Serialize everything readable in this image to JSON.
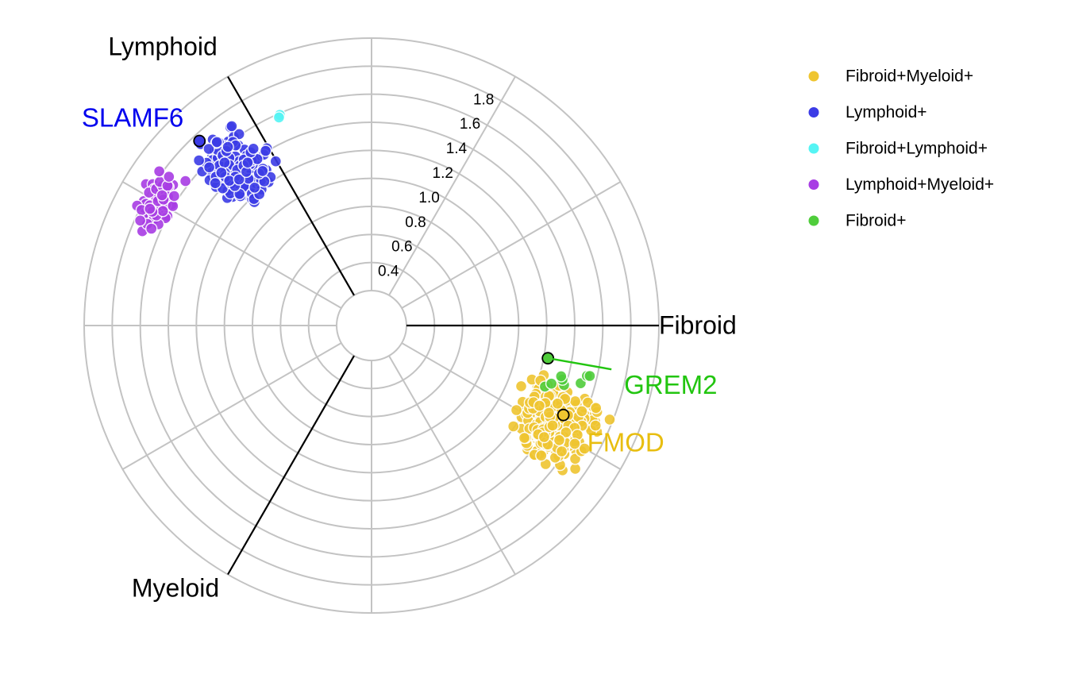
{
  "chart_data": {
    "type": "scatter",
    "subtype": "polar (radial 3-axis) scatter",
    "axes": [
      {
        "name": "Fibroid",
        "angle_deg": 0
      },
      {
        "name": "Lymphoid",
        "angle_deg": 120
      },
      {
        "name": "Myeloid",
        "angle_deg": 240
      }
    ],
    "radial_ticks": [
      "0.4",
      "0.6",
      "0.8",
      "1.0",
      "1.2",
      "1.4",
      "1.6",
      "1.8"
    ],
    "radial_tick_values": [
      0.4,
      0.6,
      0.8,
      1.0,
      1.2,
      1.4,
      1.6,
      1.8
    ],
    "radial_range": [
      0.2,
      2.0
    ],
    "grid": true,
    "legend_position": "top-right",
    "series": [
      {
        "name": "Fibroid+Myeloid+",
        "color": "#efc530",
        "count": 320,
        "r_range": [
          1.05,
          1.82
        ],
        "theta_range_deg": [
          -42,
          -14
        ]
      },
      {
        "name": "Lymphoid+",
        "color": "#3c3ce6",
        "count": 170,
        "r_range": [
          1.05,
          1.82
        ],
        "theta_range_deg": [
          118,
          143
        ]
      },
      {
        "name": "Fibroid+Lymphoid+",
        "color": "#55f4f4",
        "count": 2,
        "r_range": [
          1.55,
          1.62
        ],
        "theta_range_deg": [
          112,
          116
        ]
      },
      {
        "name": "Lymphoid+Myeloid+",
        "color": "#a83de4",
        "count": 60,
        "r_range": [
          1.55,
          1.9
        ],
        "theta_range_deg": [
          141,
          160
        ]
      },
      {
        "name": "Fibroid+",
        "color": "#4fcd3b",
        "count": 8,
        "r_range": [
          1.1,
          1.65
        ],
        "theta_range_deg": [
          -21,
          -10
        ]
      }
    ],
    "highlighted_genes": [
      {
        "label": "SLAMF6",
        "series": "Lymphoid+",
        "r": 1.75,
        "theta_deg": 133,
        "color": "#0000ee"
      },
      {
        "label": "GREM2",
        "series": "Fibroid+",
        "r": 1.23,
        "theta_deg": -10.5,
        "color": "#22c510"
      },
      {
        "label": "FMOD",
        "series": "Fibroid+Myeloid+",
        "r": 1.46,
        "theta_deg": -25,
        "color": "#e8be10"
      }
    ]
  }
}
